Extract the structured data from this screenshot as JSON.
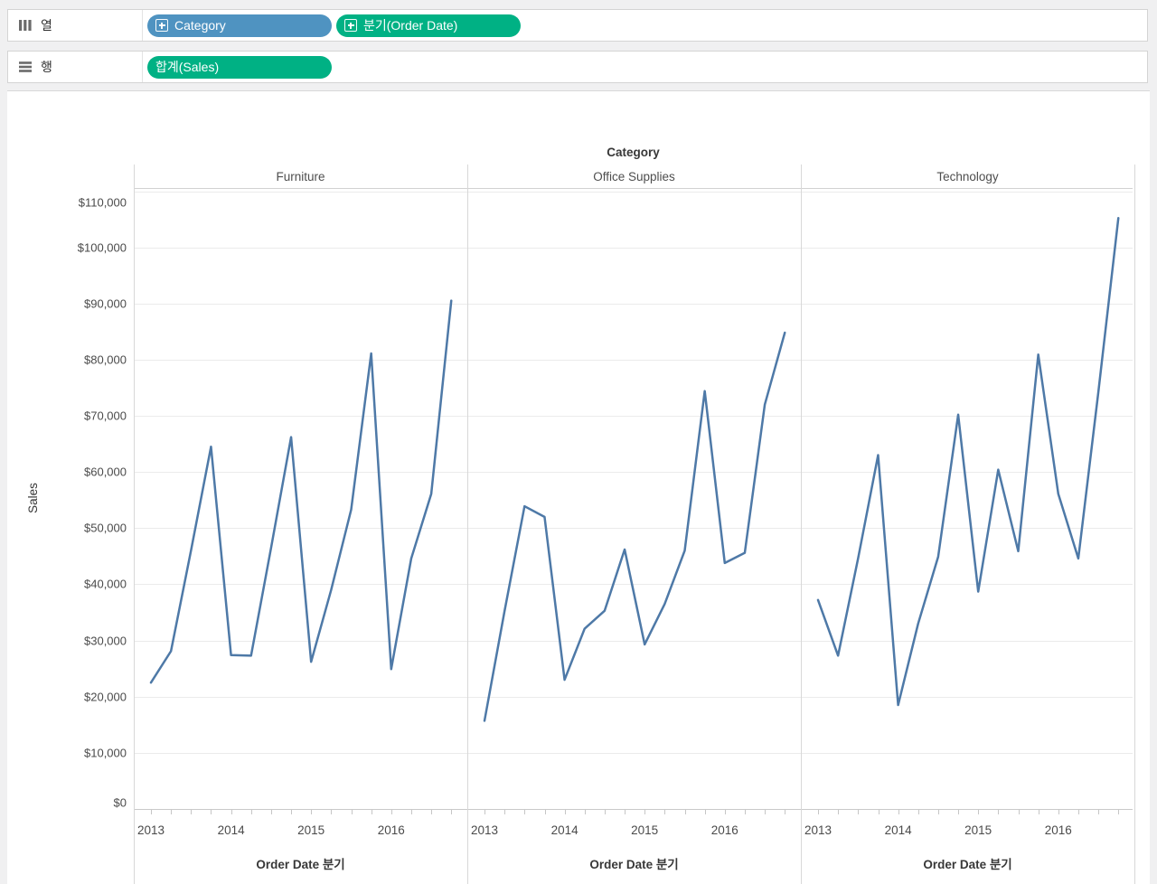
{
  "colors": {
    "pill_blue": "#4F93C1",
    "pill_green": "#00B184",
    "line_blue": "#4E79A7"
  },
  "shelves": {
    "columns": {
      "label": "열",
      "pills": [
        {
          "label": "Category",
          "color": "blue",
          "has_expand_icon": true
        },
        {
          "label": "분기(Order Date)",
          "color": "green",
          "has_expand_icon": true
        }
      ]
    },
    "rows": {
      "label": "행",
      "pills": [
        {
          "label": "합계(Sales)",
          "color": "green",
          "has_expand_icon": false
        }
      ]
    }
  },
  "chart": {
    "column_field_label": "Category",
    "panels": [
      "Furniture",
      "Office Supplies",
      "Technology"
    ],
    "y_axis": {
      "title": "Sales",
      "ticks": [
        {
          "label": "$0",
          "value": 0
        },
        {
          "label": "$10,000",
          "value": 10000
        },
        {
          "label": "$20,000",
          "value": 20000
        },
        {
          "label": "$30,000",
          "value": 30000
        },
        {
          "label": "$40,000",
          "value": 40000
        },
        {
          "label": "$50,000",
          "value": 50000
        },
        {
          "label": "$60,000",
          "value": 60000
        },
        {
          "label": "$70,000",
          "value": 70000
        },
        {
          "label": "$80,000",
          "value": 80000
        },
        {
          "label": "$90,000",
          "value": 90000
        },
        {
          "label": "$100,000",
          "value": 100000
        },
        {
          "label": "$110,000",
          "value": 110000
        }
      ]
    },
    "x_axis": {
      "title": "Order Date 분기",
      "year_labels": [
        "2013",
        "2014",
        "2015",
        "2016"
      ]
    }
  },
  "chart_data": {
    "type": "line",
    "title": "Category",
    "xlabel": "Order Date 분기",
    "ylabel": "Sales",
    "ylim": [
      0,
      110000
    ],
    "y_tick_step": 10000,
    "grid": true,
    "legend_position": "none",
    "line_color": "#4E79A7",
    "x": [
      "2013 Q1",
      "2013 Q2",
      "2013 Q3",
      "2013 Q4",
      "2014 Q1",
      "2014 Q2",
      "2014 Q3",
      "2014 Q4",
      "2015 Q1",
      "2015 Q2",
      "2015 Q3",
      "2015 Q4",
      "2016 Q1",
      "2016 Q2",
      "2016 Q3",
      "2016 Q4"
    ],
    "series": [
      {
        "name": "Furniture",
        "values": [
          22500,
          28100,
          46000,
          64500,
          27400,
          27300,
          46500,
          66200,
          26200,
          39000,
          53300,
          81100,
          24900,
          44600,
          56100,
          90500
        ]
      },
      {
        "name": "Office Supplies",
        "values": [
          15700,
          35200,
          53900,
          52000,
          23000,
          32100,
          35300,
          46200,
          29300,
          36500,
          46000,
          74400,
          43800,
          45600,
          72000,
          84800
        ]
      },
      {
        "name": "Technology",
        "values": [
          37200,
          27300,
          44600,
          63000,
          18500,
          33000,
          44900,
          70200,
          38700,
          60400,
          45900,
          80900,
          56100,
          44600,
          74200,
          105200
        ]
      }
    ]
  }
}
